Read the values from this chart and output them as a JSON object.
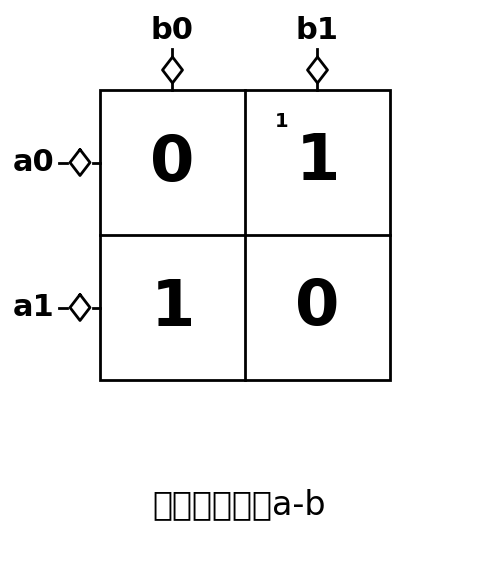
{
  "title": "二进减加法表a-b",
  "title_fontsize": 24,
  "col_labels": [
    "b0",
    "b1"
  ],
  "row_labels": [
    "a0",
    "a1"
  ],
  "cell_values": [
    [
      "0",
      "1"
    ],
    [
      "1",
      "0"
    ]
  ],
  "superscript": {
    "row": 0,
    "col": 1,
    "text": "1"
  },
  "bg_color": "#ffffff",
  "text_color": "#000000",
  "cell_fontsize": 46,
  "label_fontsize": 22,
  "super_fontsize": 14
}
